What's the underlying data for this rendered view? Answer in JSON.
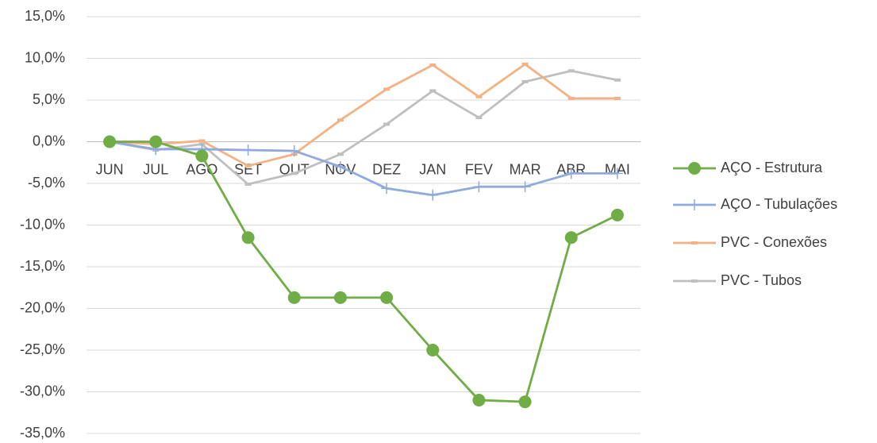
{
  "chart_data": {
    "type": "line",
    "categories": [
      "JUN",
      "JUL",
      "AGO",
      "SET",
      "OUT",
      "NOV",
      "DEZ",
      "JAN",
      "FEV",
      "MAR",
      "ABR",
      "MAI"
    ],
    "series": [
      {
        "name": "AÇO - Estrutura",
        "color": "#70ad47",
        "marker": "circle",
        "values": [
          0,
          0,
          -1.7,
          -11.5,
          -18.7,
          -18.7,
          -18.7,
          -25.0,
          -31.0,
          -31.2,
          -11.5,
          -8.8
        ]
      },
      {
        "name": "AÇO - Tubulações",
        "color": "#8faadc",
        "marker": "plus",
        "values": [
          0,
          -0.9,
          -0.9,
          -1.0,
          -1.1,
          -3.0,
          -5.6,
          -6.4,
          -5.4,
          -5.4,
          -3.8,
          -3.8
        ]
      },
      {
        "name": "PVC - Conexões",
        "color": "#f4b183",
        "marker": "dash",
        "values": [
          0,
          -0.3,
          0.1,
          -2.9,
          -1.5,
          2.6,
          6.3,
          9.2,
          5.4,
          9.3,
          5.2,
          5.2
        ]
      },
      {
        "name": "PVC - Tubos",
        "color": "#bfbfbf",
        "marker": "dash",
        "values": [
          0,
          -1.0,
          -0.3,
          -5.1,
          -3.8,
          -1.5,
          2.1,
          6.1,
          2.9,
          7.2,
          8.5,
          7.4
        ]
      }
    ],
    "ylim": [
      -35,
      15
    ],
    "yticks": [
      {
        "value": 15,
        "label": "15,0%"
      },
      {
        "value": 10,
        "label": "10,0%"
      },
      {
        "value": 5,
        "label": "5,0%"
      },
      {
        "value": 0,
        "label": "0,0%"
      },
      {
        "value": -5,
        "label": "-5,0%"
      },
      {
        "value": -10,
        "label": "-10,0%"
      },
      {
        "value": -15,
        "label": "-15,0%"
      },
      {
        "value": -20,
        "label": "-20,0%"
      },
      {
        "value": -25,
        "label": "-25,0%"
      },
      {
        "value": -30,
        "label": "-30,0%"
      },
      {
        "value": -35,
        "label": "-35,0%"
      }
    ],
    "grid": true,
    "legend": "right"
  }
}
